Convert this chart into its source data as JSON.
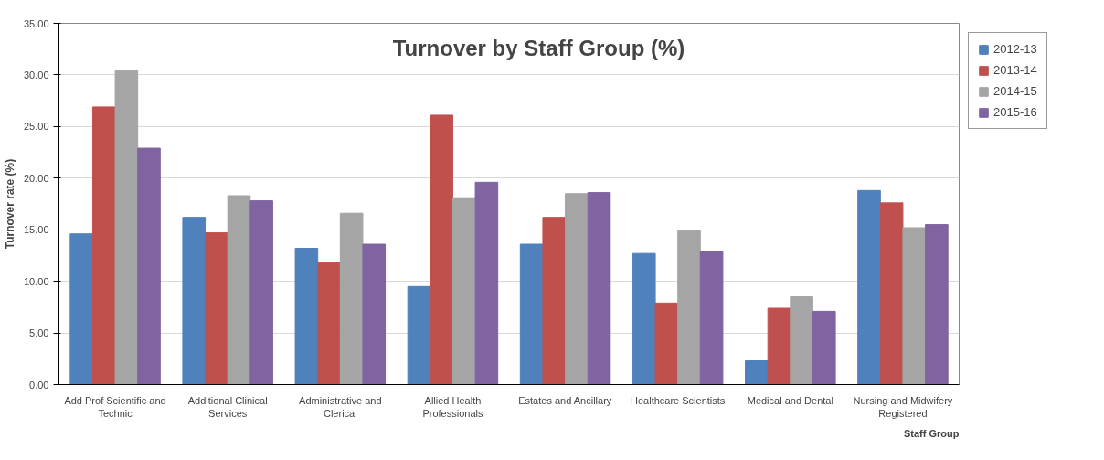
{
  "chart_data": {
    "type": "bar",
    "title": "Turnover by Staff Group (%)",
    "xlabel": "Staff Group",
    "ylabel": "Turnover rate (%)",
    "categories": [
      "Add Prof Scientific and Technic",
      "Additional Clinical Services",
      "Administrative and Clerical",
      "Allied Health Professionals",
      "Estates and Ancillary",
      "Healthcare Scientists",
      "Medical and Dental",
      "Nursing and Midwifery Registered"
    ],
    "series": [
      {
        "name": "2012-13",
        "color": "#4f81bd",
        "values": [
          14.6,
          16.2,
          13.2,
          9.5,
          13.6,
          12.7,
          2.3,
          18.8
        ]
      },
      {
        "name": "2013-14",
        "color": "#c0504d",
        "values": [
          26.9,
          14.7,
          11.8,
          26.1,
          16.2,
          7.9,
          7.4,
          17.6
        ]
      },
      {
        "name": "2014-15",
        "color": "#a5a5a5",
        "values": [
          30.4,
          18.3,
          16.6,
          18.1,
          18.5,
          14.9,
          8.5,
          15.2
        ]
      },
      {
        "name": "2015-16",
        "color": "#8064a2",
        "values": [
          22.9,
          17.8,
          13.6,
          19.6,
          18.6,
          12.9,
          7.1,
          15.5
        ]
      }
    ],
    "ylim": [
      0,
      35
    ],
    "yticks": [
      {
        "value": 0,
        "label": "0.00"
      },
      {
        "value": 5,
        "label": "5.00"
      },
      {
        "value": 10,
        "label": "10.00"
      },
      {
        "value": 15,
        "label": "15.00"
      },
      {
        "value": 20,
        "label": "20.00"
      },
      {
        "value": 25,
        "label": "25.00"
      },
      {
        "value": 30,
        "label": "30.00"
      },
      {
        "value": 35,
        "label": "35.00"
      }
    ],
    "grid": "y",
    "legend": "right"
  }
}
